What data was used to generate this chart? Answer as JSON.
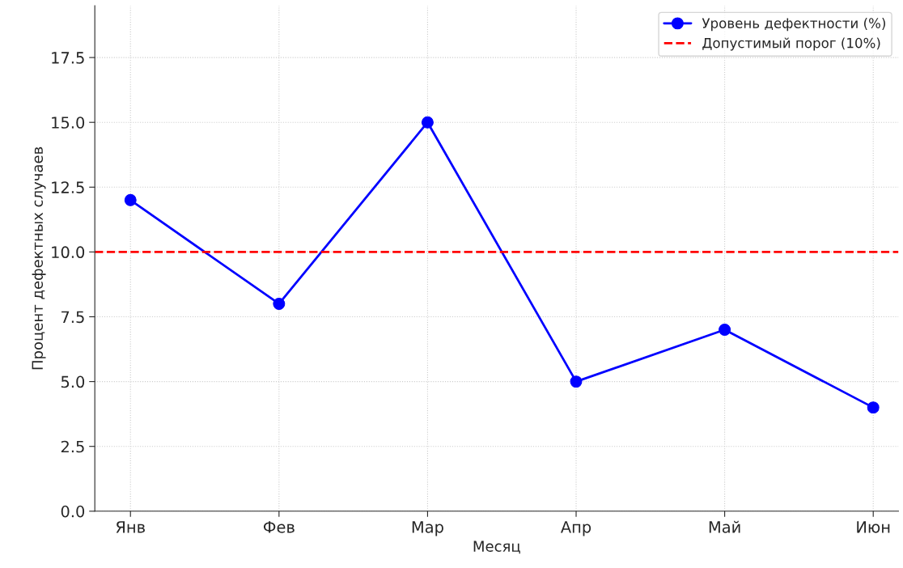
{
  "chart_data": {
    "type": "line",
    "xlabel": "Месяц",
    "ylabel": "Процент дефектных случаев",
    "categories": [
      "Янв",
      "Фев",
      "Мар",
      "Апр",
      "Май",
      "Июн"
    ],
    "series": [
      {
        "name": "Уровень дефектности (%)",
        "color": "#0000ff",
        "values": [
          12,
          8,
          15,
          5,
          7,
          4
        ]
      }
    ],
    "ylim": [
      0,
      19.5
    ],
    "yticks": [
      {
        "value": 0,
        "label": "0.0"
      },
      2.5,
      {
        "value": 5,
        "label": "5.0"
      },
      7.5,
      {
        "value": 10,
        "label": "10.0"
      },
      12.5,
      {
        "value": 15,
        "label": "15.0"
      },
      17.5
    ],
    "ref_lines": [
      {
        "axis": "y",
        "value": 10,
        "label": "Допустимый порог (10%)",
        "color": "#ff0000",
        "line_style": "dashed"
      }
    ],
    "grid": true,
    "legend": "top right",
    "marker": "circle",
    "line_style": "solid"
  }
}
